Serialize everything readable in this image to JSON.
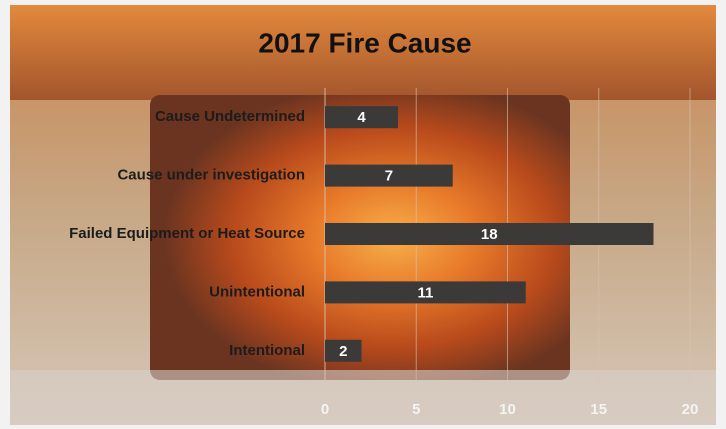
{
  "chart_data": {
    "type": "bar",
    "orientation": "horizontal",
    "title": "2017 Fire Cause",
    "categories": [
      "Cause Undetermined",
      "Cause under investigation",
      "Failed Equipment or Heat Source",
      "Unintentional",
      "Intentional"
    ],
    "values": [
      4,
      7,
      18,
      11,
      2
    ],
    "color": "#3b3a39",
    "xlim": [
      0,
      20
    ],
    "xticks": [
      0,
      5,
      10,
      15,
      20
    ],
    "grid": true
  }
}
